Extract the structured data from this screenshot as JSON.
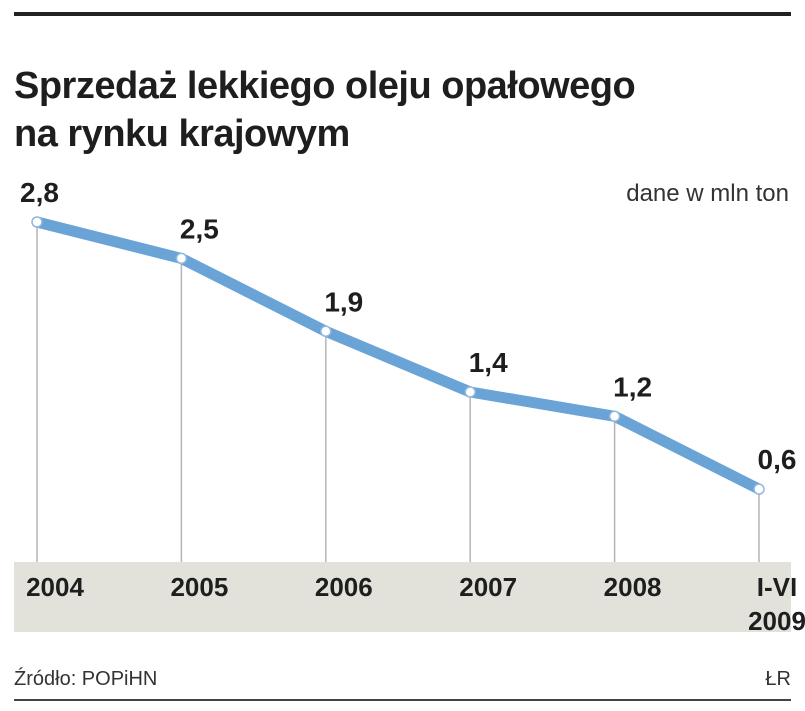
{
  "title": {
    "line1": "Sprzedaż lekkiego oleju opałowego",
    "line2": "na rynku krajowym"
  },
  "unit_note": "dane w mln ton",
  "source": "Źródło: POPiHN",
  "credit": "ŁR",
  "colors": {
    "line": "#6aa3d6",
    "band": "#e2e2da",
    "text": "#1e1e1e"
  },
  "chart_data": {
    "type": "line",
    "title": "Sprzedaż lekkiego oleju opałowego na rynku krajowym",
    "ylabel": "dane w mln ton",
    "xlabel": "",
    "categories": [
      "2004",
      "2005",
      "2006",
      "2007",
      "2008",
      "I-VI 2009"
    ],
    "category_lines": [
      [
        "2004"
      ],
      [
        "2005"
      ],
      [
        "2006"
      ],
      [
        "2007"
      ],
      [
        "2008"
      ],
      [
        "I-VI",
        "2009"
      ]
    ],
    "values": [
      2.8,
      2.5,
      1.9,
      1.4,
      1.2,
      0.6
    ],
    "value_labels": [
      "2,8",
      "2,5",
      "1,9",
      "1,4",
      "1,2",
      "0,6"
    ],
    "ylim": [
      0,
      2.8
    ],
    "grid": false
  }
}
